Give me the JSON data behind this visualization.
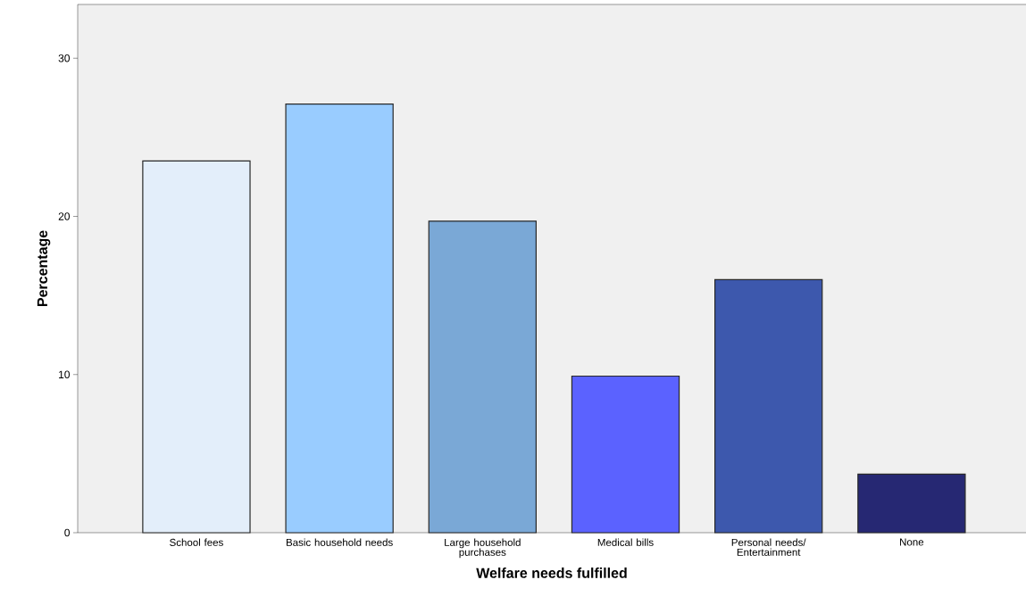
{
  "chart_data": {
    "type": "bar",
    "xlabel": "Welfare needs fulfilled",
    "ylabel": "Percentage",
    "categories": [
      "School fees",
      "Basic household needs",
      "Large household purchases",
      "Medical bills",
      "Personal needs/ Entertainment",
      "None"
    ],
    "values": [
      23.5,
      27.1,
      19.7,
      9.9,
      16.0,
      3.7
    ],
    "colors": [
      "#e3eefa",
      "#99ccff",
      "#7aa8d6",
      "#5b62ff",
      "#3d58ad",
      "#262873"
    ],
    "ylim": [
      0,
      33.4
    ],
    "yticks": [
      0,
      10,
      20,
      30
    ],
    "grid": false
  }
}
